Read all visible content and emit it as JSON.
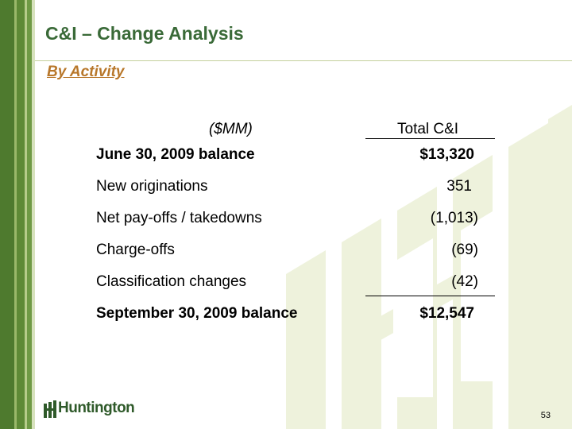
{
  "slide": {
    "title": "C&I – Change Analysis",
    "subtitle": "By Activity",
    "page_number": "53"
  },
  "table": {
    "units": "($MM)",
    "column_header": "Total C&I",
    "rows": [
      {
        "label": "June 30, 2009 balance",
        "value": "$13,320",
        "bold": true
      },
      {
        "label": "New originations",
        "value": "351",
        "bold": false
      },
      {
        "label": "Net pay-offs / takedowns",
        "value": "(1,013)",
        "bold": false
      },
      {
        "label": "Charge-offs",
        "value": "(69)",
        "bold": false
      },
      {
        "label": "Classification changes",
        "value": "(42)",
        "bold": false
      },
      {
        "label": "September 30, 2009 balance",
        "value": "$12,547",
        "bold": true
      }
    ]
  },
  "logo": {
    "name": "Huntington",
    "icon": "huntington-logo-icon"
  },
  "colors": {
    "title": "#3a6a38",
    "subtitle": "#b8772a",
    "stripe_dark": "#4e7a2e",
    "watermark": "#eef2dc"
  }
}
